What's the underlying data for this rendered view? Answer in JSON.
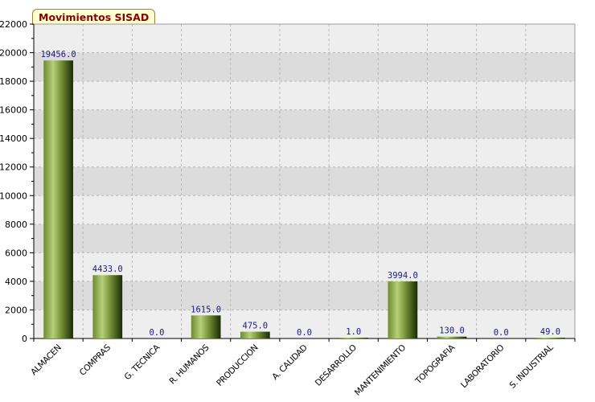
{
  "title": "Movimientos SISAD",
  "chart_data": {
    "type": "bar",
    "title": "Movimientos SISAD",
    "xlabel": "",
    "ylabel": "",
    "categories": [
      "ALMACEN",
      "COMPRAS",
      "G. TECNICA",
      "R. HUMANOS",
      "PRODUCCION",
      "A. CALIDAD",
      "DESARROLLO",
      "MANTENIMIENTO",
      "TOPOGRAFIA",
      "LABORATORIO",
      "S. INDUSTRIAL"
    ],
    "values": [
      19456.0,
      4433.0,
      0.0,
      1615.0,
      475.0,
      0.0,
      1.0,
      3994.0,
      130.0,
      0.0,
      49.0
    ],
    "value_labels": [
      "19456.0",
      "4433.0",
      "0.0",
      "1615.0",
      "475.0",
      "0.0",
      "1.0",
      "3994.0",
      "130.0",
      "0.0",
      "49.0"
    ],
    "ylim": [
      0,
      22000
    ],
    "yticks": [
      0,
      2000,
      4000,
      6000,
      8000,
      10000,
      12000,
      14000,
      16000,
      18000,
      20000,
      22000
    ],
    "grid": true,
    "legend": "none",
    "colors": {
      "bar_light": "#b6d07a",
      "bar_mid": "#6e8a32",
      "bar_dark": "#1a2a06",
      "band_dark": "#dcdcdc",
      "band_light": "#eeeeee",
      "grid": "#b8b8b8",
      "title_text": "#8b0000",
      "title_bg": "#ffffd2",
      "value_label": "#1a1a8a"
    }
  }
}
